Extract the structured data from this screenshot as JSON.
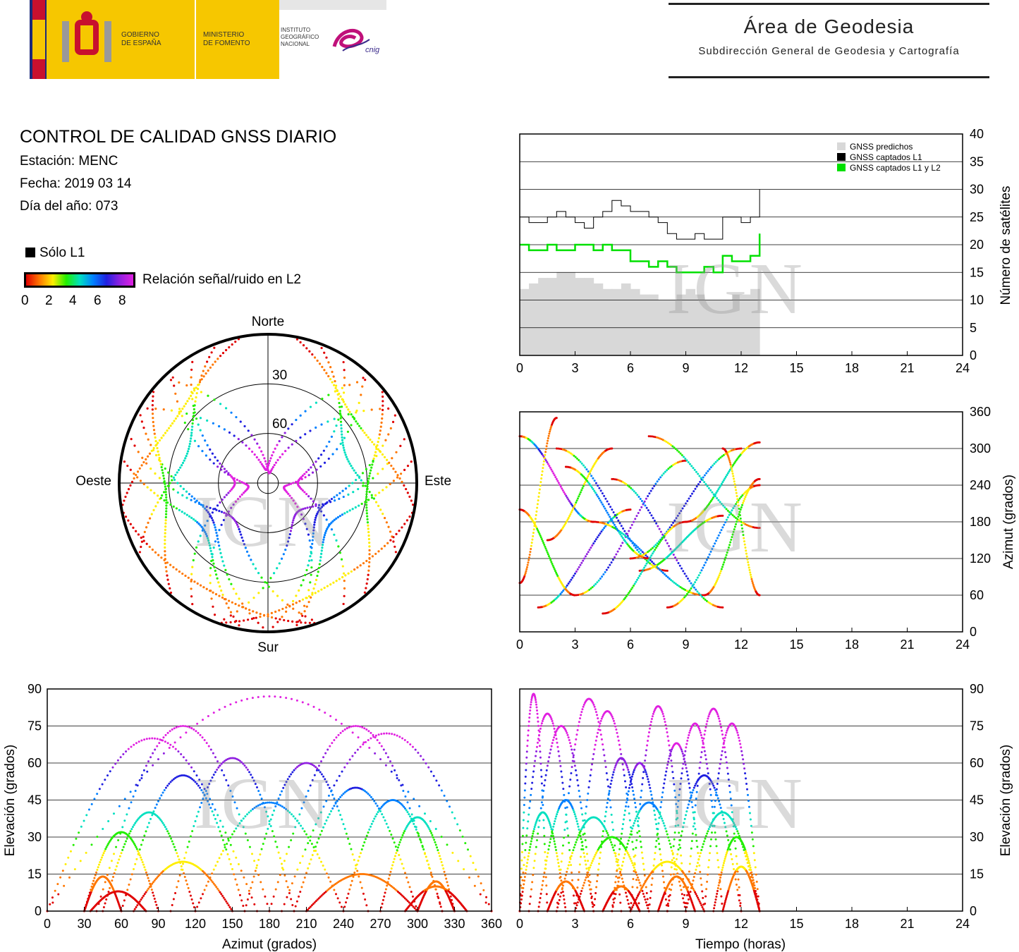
{
  "header": {
    "gov_line1": "GOBIERNO",
    "gov_line2": "DE ESPAÑA",
    "min_line1": "MINISTERIO",
    "min_line2": "DE FOMENTO",
    "ign_line1": "INSTITUTO",
    "ign_line2": "GEOGRÁFICO",
    "ign_line3": "NACIONAL",
    "cnig": "cnig",
    "area_title": "Área de Geodesia",
    "area_subtitle": "Subdirección General de Geodesia y Cartografía"
  },
  "info": {
    "title": "CONTROL DE CALIDAD GNSS DIARIO",
    "station": "Estación: MENC",
    "date": "Fecha: 2019 03 14",
    "doy": "Día del año: 073"
  },
  "legend": {
    "solo_l1": "Sólo L1",
    "snr_label": "Relación señal/ruido en L2",
    "snr_ticks": [
      "0",
      "2",
      "4",
      "6",
      "8"
    ]
  },
  "watermark": "IGN",
  "chart_data": [
    {
      "id": "satellite-count",
      "type": "line",
      "xlabel": "",
      "ylabel": "Número de satélites",
      "xlim": [
        0,
        24
      ],
      "ylim": [
        0,
        40
      ],
      "xticks": [
        "0",
        "3",
        "6",
        "9",
        "12",
        "15",
        "18",
        "21",
        "24"
      ],
      "yticks": [
        "0",
        "5",
        "10",
        "15",
        "20",
        "25",
        "30",
        "35",
        "40"
      ],
      "legend_position": "top-right",
      "legend": [
        "GNSS predichos",
        "GNSS captados L1",
        "GNSS captados L1 y L2"
      ],
      "colors": {
        "predichos": "#d8d8d8",
        "l1": "#000000",
        "l1l2": "#00e000"
      },
      "x": [
        0,
        0.5,
        1,
        1.5,
        2,
        2.5,
        3,
        3.5,
        4,
        4.5,
        5,
        5.5,
        6,
        6.5,
        7,
        7.5,
        8,
        8.5,
        9,
        9.5,
        10,
        10.5,
        11,
        11.5,
        12,
        12.5,
        13
      ],
      "series": [
        {
          "name": "GNSS predichos",
          "values": [
            12,
            13,
            14,
            14,
            15,
            15,
            14,
            14,
            13,
            12,
            12,
            13,
            12,
            11,
            11,
            10,
            10,
            11,
            12,
            11,
            10,
            10,
            10,
            11,
            11,
            12,
            12
          ]
        },
        {
          "name": "GNSS captados L1",
          "values": [
            25,
            24,
            24,
            25,
            26,
            25,
            24,
            23,
            25,
            26,
            28,
            27,
            26,
            26,
            25,
            24,
            22,
            21,
            21,
            22,
            21,
            21,
            25,
            25,
            24,
            25,
            30
          ]
        },
        {
          "name": "GNSS captados L1 y L2",
          "values": [
            20,
            19,
            19,
            20,
            19,
            19,
            20,
            20,
            19,
            20,
            19,
            19,
            17,
            17,
            16,
            17,
            16,
            15,
            15,
            15,
            16,
            15,
            18,
            17,
            17,
            18,
            22
          ]
        }
      ]
    },
    {
      "id": "skyplot",
      "type": "scatter",
      "title": "",
      "ring_labels": [
        "30",
        "60"
      ],
      "directions": {
        "north": "Norte",
        "south": "Sur",
        "east": "Este",
        "west": "Oeste"
      }
    },
    {
      "id": "azimuth-time",
      "type": "scatter",
      "xlabel": "",
      "ylabel": "Azimut (grados)",
      "xlim": [
        0,
        24
      ],
      "ylim": [
        0,
        360
      ],
      "xticks": [
        "0",
        "3",
        "6",
        "9",
        "12",
        "15",
        "18",
        "21",
        "24"
      ],
      "yticks": [
        "0",
        "60",
        "120",
        "180",
        "240",
        "300",
        "360"
      ]
    },
    {
      "id": "elevation-azimuth",
      "type": "scatter",
      "xlabel": "Azimut (grados)",
      "ylabel": "Elevación (grados)",
      "xlim": [
        0,
        360
      ],
      "ylim": [
        0,
        90
      ],
      "xticks": [
        "0",
        "30",
        "60",
        "90",
        "120",
        "150",
        "180",
        "210",
        "240",
        "270",
        "300",
        "330",
        "360"
      ],
      "yticks": [
        "0",
        "15",
        "30",
        "45",
        "60",
        "75",
        "90"
      ]
    },
    {
      "id": "elevation-time",
      "type": "scatter",
      "xlabel": "Tiempo (horas)",
      "ylabel": "Elevación (grados)",
      "xlim": [
        0,
        24
      ],
      "ylim": [
        0,
        90
      ],
      "xticks": [
        "0",
        "3",
        "6",
        "9",
        "12",
        "15",
        "18",
        "21",
        "24"
      ],
      "yticks": [
        "0",
        "15",
        "30",
        "45",
        "60",
        "75",
        "90"
      ]
    }
  ]
}
